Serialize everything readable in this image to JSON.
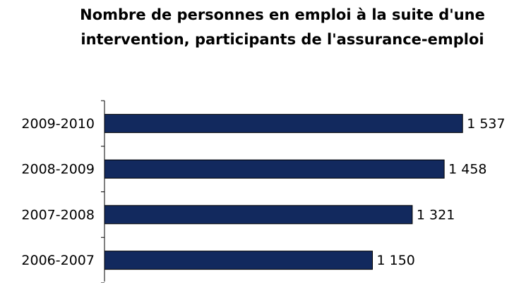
{
  "chart_data": {
    "type": "bar",
    "orientation": "horizontal",
    "title": "Nombre de personnes en emploi à la suite d'une intervention, participants de l'assurance-emploi",
    "categories": [
      "2009-2010",
      "2008-2009",
      "2007-2008",
      "2006-2007"
    ],
    "values": [
      1537,
      1458,
      1321,
      1150
    ],
    "value_labels": [
      "1 537",
      "1 458",
      "1 321",
      "1 150"
    ],
    "color": "#12295e",
    "xlim": [
      0,
      1800
    ]
  }
}
